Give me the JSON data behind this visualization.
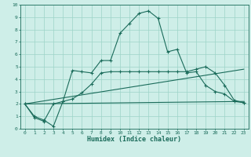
{
  "xlabel": "Humidex (Indice chaleur)",
  "xlim": [
    -0.5,
    23.5
  ],
  "ylim": [
    0,
    10
  ],
  "xticks": [
    0,
    1,
    2,
    3,
    4,
    5,
    6,
    7,
    8,
    9,
    10,
    11,
    12,
    13,
    14,
    15,
    16,
    17,
    18,
    19,
    20,
    21,
    22,
    23
  ],
  "yticks": [
    0,
    1,
    2,
    3,
    4,
    5,
    6,
    7,
    8,
    9,
    10
  ],
  "bg_color": "#ceeee8",
  "line_color": "#1a6b5a",
  "grid_color": "#9dd4c8",
  "curve1_x": [
    0,
    1,
    2,
    3,
    4,
    5,
    6,
    7,
    8,
    9,
    10,
    11,
    12,
    13,
    14,
    15,
    16,
    17,
    18,
    19,
    20,
    21,
    22,
    23
  ],
  "curve1_y": [
    2.0,
    1.0,
    0.7,
    0.2,
    2.2,
    4.7,
    4.6,
    4.5,
    5.5,
    5.5,
    7.7,
    8.5,
    9.3,
    9.5,
    8.9,
    6.2,
    6.4,
    4.5,
    4.6,
    3.5,
    3.0,
    2.8,
    2.2,
    2.1
  ],
  "curve2_x": [
    0,
    1,
    2,
    3,
    4,
    5,
    6,
    7,
    8,
    9,
    10,
    11,
    12,
    13,
    14,
    15,
    16,
    17,
    18,
    19,
    20,
    21,
    22,
    23
  ],
  "curve2_y": [
    2.0,
    0.9,
    0.6,
    2.0,
    2.2,
    2.4,
    2.9,
    3.6,
    4.5,
    4.6,
    4.6,
    4.6,
    4.6,
    4.6,
    4.6,
    4.6,
    4.6,
    4.6,
    4.8,
    5.0,
    4.5,
    3.5,
    2.3,
    2.1
  ],
  "line3_x": [
    0,
    23
  ],
  "line3_y": [
    2.0,
    4.8
  ],
  "line4_x": [
    0,
    23
  ],
  "line4_y": [
    2.0,
    2.2
  ]
}
